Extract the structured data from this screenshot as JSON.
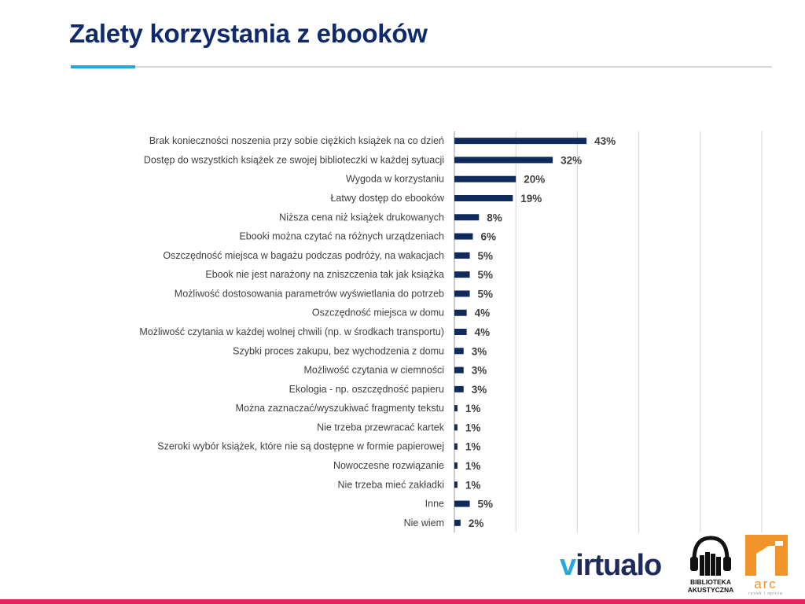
{
  "page": {
    "title": "Zalety korzystania z ebooków"
  },
  "colors": {
    "title": "#0f2b6b",
    "bar": "#0f2b5c",
    "accent": "#2aa6dc",
    "bottom_bar": "#e0225f"
  },
  "chart_data": {
    "type": "bar",
    "orientation": "horizontal",
    "categories": [
      "Brak konieczności noszenia przy sobie ciężkich książek na co dzień",
      "Dostęp do wszystkich książek ze swojej biblioteczki w każdej sytuacji",
      "Wygoda w korzystaniu",
      "Łatwy dostęp do ebooków",
      "Niższa cena niż książek drukowanych",
      "Ebooki można czytać na różnych urządzeniach",
      "Oszczędność miejsca w bagażu podczas podróży, na wakacjach",
      "Ebook nie jest narażony na zniszczenia tak jak książka",
      "Możliwość dostosowania parametrów wyświetlania do potrzeb",
      "Oszczędność miejsca w domu",
      "Możliwość czytania w każdej wolnej chwili (np. w środkach transportu)",
      "Szybki proces zakupu, bez wychodzenia z domu",
      "Możliwość czytania w ciemności",
      "Ekologia - np. oszczędność papieru",
      "Można zaznaczać/wyszukiwać fragmenty tekstu",
      "Nie trzeba przewracać kartek",
      "Szeroki wybór książek, które nie są dostępne w formie papierowej",
      "Nowoczesne rozwiązanie",
      "Nie trzeba mieć zakładki",
      "Inne",
      "Nie wiem"
    ],
    "values": [
      43,
      32,
      20,
      19,
      8,
      6,
      5,
      5,
      5,
      4,
      4,
      3,
      3,
      3,
      1,
      1,
      1,
      1,
      1,
      5,
      2
    ],
    "value_labels": [
      "43%",
      "32%",
      "20%",
      "19%",
      "8%",
      "6%",
      "5%",
      "5%",
      "5%",
      "4%",
      "4%",
      "3%",
      "3%",
      "3%",
      "1%",
      "1%",
      "1%",
      "1%",
      "1%",
      "5%",
      "2%"
    ],
    "xlim": [
      0,
      100
    ],
    "x_gridlines": [
      0,
      20,
      40,
      60,
      80,
      100
    ],
    "grid": true,
    "legend": "none"
  },
  "logos": {
    "virtualo_text": "virtualo",
    "biblioteka_text": "BIBLIOTEKA AKUSTYCZNA",
    "arc_text": "arc",
    "arc_sub": "rynek i opinia"
  }
}
